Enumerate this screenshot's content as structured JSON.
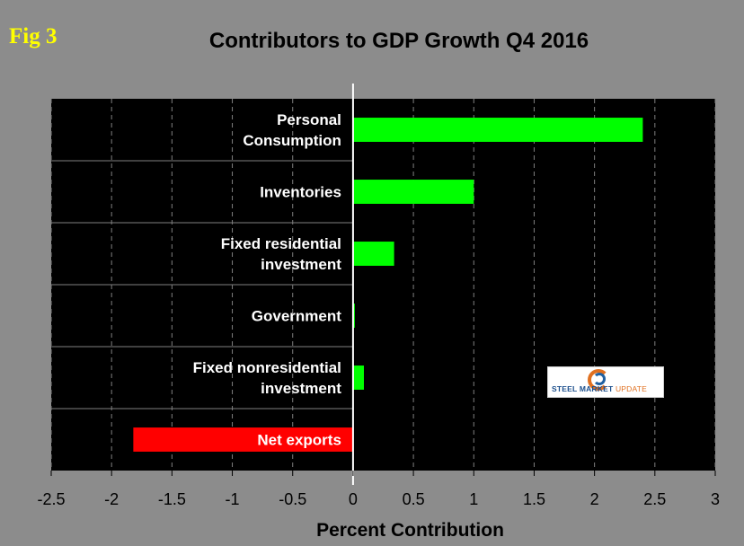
{
  "fig_label": "Fig 3",
  "logo": {
    "brand": "STEEL",
    "market": "MARKET",
    "update": "UPDATE"
  },
  "chart_data": {
    "type": "bar",
    "orientation": "horizontal",
    "title": "Contributors to GDP Growth Q4 2016",
    "xlabel": "Percent Contribution",
    "ylabel": "",
    "xlim": [
      -2.5,
      3
    ],
    "xticks": [
      -2.5,
      -2,
      -1.5,
      -1,
      -0.5,
      0,
      0.5,
      1,
      1.5,
      2,
      2.5,
      3
    ],
    "xtick_labels": [
      "-2.5",
      "-2",
      "-1.5",
      "-1",
      "-0.5",
      "0",
      "0.5",
      "1",
      "1.5",
      "2",
      "2.5",
      "3"
    ],
    "grid": true,
    "categories": [
      [
        "Personal",
        "Consumption"
      ],
      [
        "Inventories"
      ],
      [
        "Fixed residential",
        "investment"
      ],
      [
        "Government"
      ],
      [
        "Fixed nonresidential",
        "investment"
      ],
      [
        "Net exports"
      ]
    ],
    "values": [
      2.4,
      1.0,
      0.34,
      0.01,
      0.09,
      -1.82
    ],
    "colors": {
      "positive": "#00ff00",
      "negative": "#ff0000",
      "plot_bg": "#000000",
      "grid": "#7f7f7f",
      "axis": "#ffffff"
    }
  }
}
